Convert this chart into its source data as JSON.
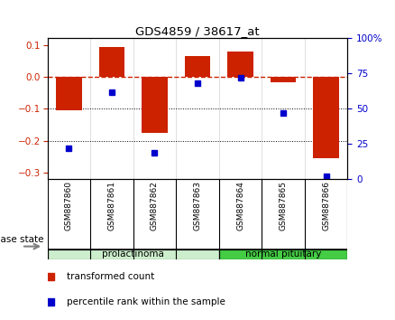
{
  "title": "GDS4859 / 38617_at",
  "samples": [
    "GSM887860",
    "GSM887861",
    "GSM887862",
    "GSM887863",
    "GSM887864",
    "GSM887865",
    "GSM887866"
  ],
  "bar_values": [
    -0.105,
    0.092,
    -0.175,
    0.065,
    0.08,
    -0.018,
    -0.255
  ],
  "dot_values_pct": [
    22,
    62,
    19,
    68,
    72,
    47,
    2
  ],
  "bar_color": "#cc2200",
  "dot_color": "#0000cc",
  "ylim_left": [
    -0.32,
    0.12
  ],
  "yticks_left": [
    0.1,
    0.0,
    -0.1,
    -0.2,
    -0.3
  ],
  "ylim_right": [
    0,
    100
  ],
  "yticks_right": [
    100,
    75,
    50,
    25,
    0
  ],
  "ytick_labels_right": [
    "100%",
    "75",
    "50",
    "25",
    "0"
  ],
  "groups": [
    {
      "label": "prolactinoma",
      "samples": [
        0,
        1,
        2,
        3
      ],
      "color_light": "#cceecc",
      "color_dark": "#55cc55"
    },
    {
      "label": "normal pituitary",
      "samples": [
        4,
        5,
        6
      ],
      "color_light": "#cceecc",
      "color_dark": "#55cc55"
    }
  ],
  "group_colors": [
    "#cceecc",
    "#44cc44"
  ],
  "disease_state_label": "disease state",
  "legend_items": [
    {
      "label": "transformed count",
      "color": "#cc2200"
    },
    {
      "label": "percentile rank within the sample",
      "color": "#0000cc"
    }
  ],
  "background_color": "#ffffff",
  "sample_area_color": "#cccccc",
  "bar_width": 0.6
}
